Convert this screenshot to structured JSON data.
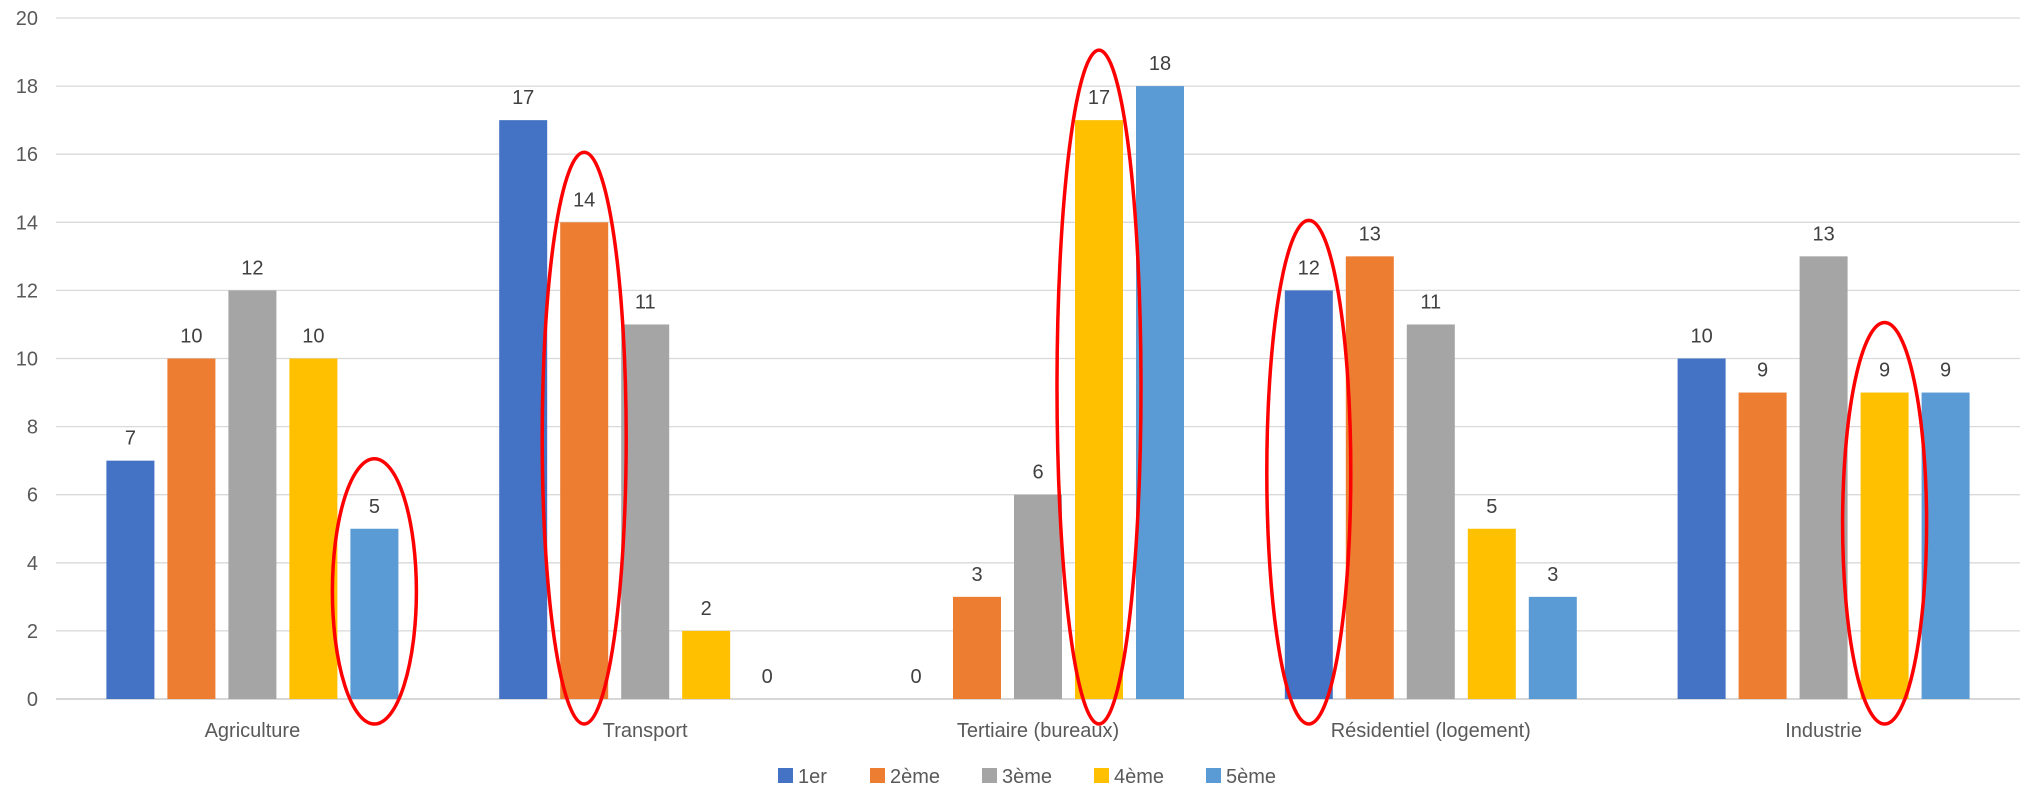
{
  "chart_data": {
    "type": "bar",
    "categories": [
      "Agriculture",
      "Transport",
      "Tertiaire (bureaux)",
      "Résidentiel (logement)",
      "Industrie"
    ],
    "series": [
      {
        "name": "1er",
        "color": "#4472C4",
        "values": [
          7,
          17,
          0,
          12,
          10
        ]
      },
      {
        "name": "2ème",
        "color": "#ED7D31",
        "values": [
          10,
          14,
          3,
          13,
          9
        ]
      },
      {
        "name": "3ème",
        "color": "#A5A5A5",
        "values": [
          12,
          11,
          6,
          11,
          13
        ]
      },
      {
        "name": "4ème",
        "color": "#FFC000",
        "values": [
          10,
          2,
          17,
          5,
          9
        ]
      },
      {
        "name": "5ème",
        "color": "#5B9BD5",
        "values": [
          5,
          0,
          18,
          3,
          9
        ]
      }
    ],
    "ylim": [
      0,
      20
    ],
    "yticks": [
      "0",
      "2",
      "4",
      "6",
      "8",
      "10",
      "12",
      "14",
      "16",
      "18",
      "20"
    ],
    "grid": true,
    "legend": "bottom-center",
    "data_labels": true,
    "highlights": [
      {
        "category": "Agriculture",
        "series": "5ème",
        "color": "#FF0000"
      },
      {
        "category": "Transport",
        "series": "2ème",
        "color": "#FF0000"
      },
      {
        "category": "Tertiaire (bureaux)",
        "series": "4ème",
        "color": "#FF0000"
      },
      {
        "category": "Résidentiel (logement)",
        "series": "1er",
        "color": "#FF0000"
      },
      {
        "category": "Industrie",
        "series": "4ème",
        "color": "#FF0000"
      }
    ]
  }
}
